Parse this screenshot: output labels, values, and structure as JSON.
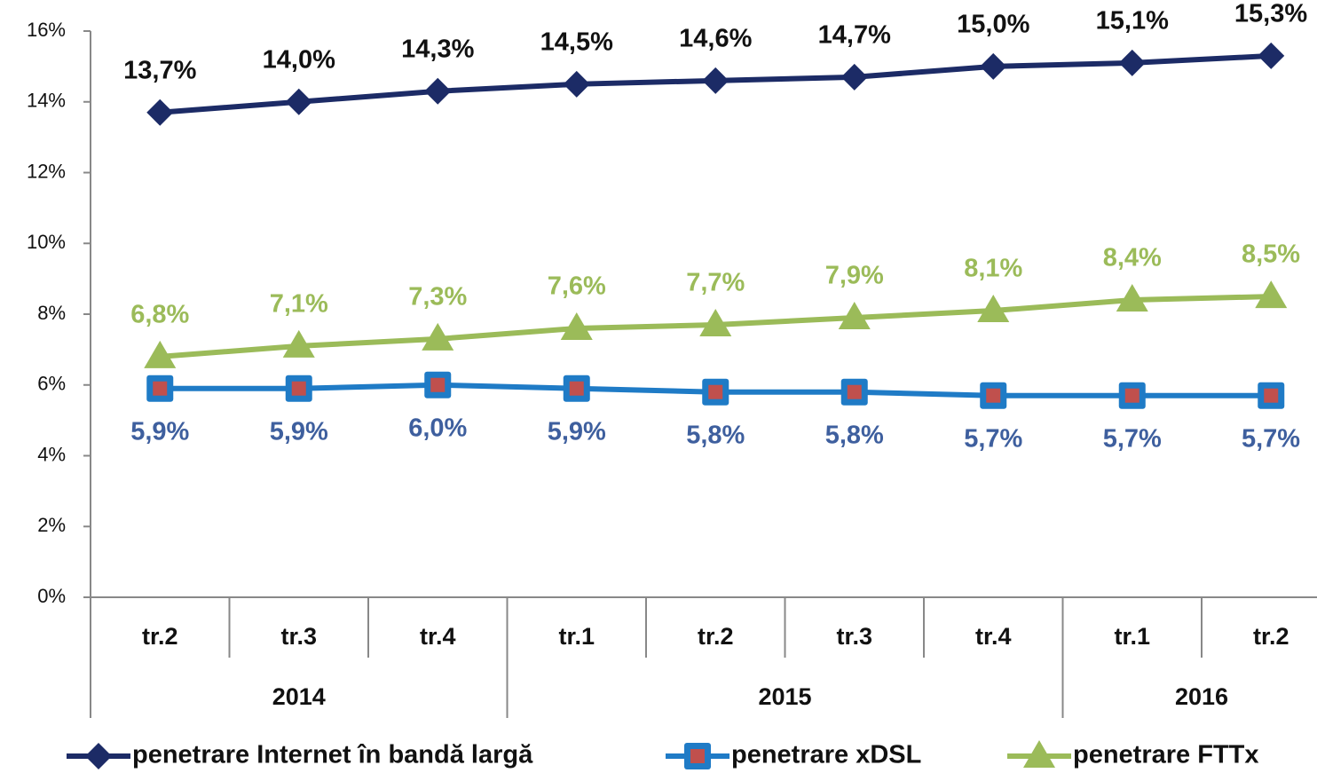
{
  "chart_data": {
    "type": "line",
    "categories": [
      "tr.2",
      "tr.3",
      "tr.4",
      "tr.1",
      "tr.2",
      "tr.3",
      "tr.4",
      "tr.1",
      "tr.2"
    ],
    "category_groups": [
      {
        "label": "2014",
        "count": 3
      },
      {
        "label": "2015",
        "count": 4
      },
      {
        "label": "2016",
        "count": 2
      }
    ],
    "ylim": [
      0,
      16
    ],
    "yticks": [
      {
        "value": 0,
        "label": "0%"
      },
      {
        "value": 2,
        "label": "2%"
      },
      {
        "value": 4,
        "label": "4%"
      },
      {
        "value": 6,
        "label": "6%"
      },
      {
        "value": 8,
        "label": "8%"
      },
      {
        "value": 10,
        "label": "10%"
      },
      {
        "value": 12,
        "label": "12%"
      },
      {
        "value": 14,
        "label": "14%"
      },
      {
        "value": 16,
        "label": "16%"
      }
    ],
    "legend": "bottom",
    "series": [
      {
        "name": "penetrare Internet în bandă largă",
        "color": "#1c2b66",
        "marker": "diamond",
        "label_color": "#111111",
        "label_position": "above",
        "values": [
          13.7,
          14.0,
          14.3,
          14.5,
          14.6,
          14.7,
          15.0,
          15.1,
          15.3
        ],
        "value_labels": [
          "13,7%",
          "14,0%",
          "14,3%",
          "14,5%",
          "14,6%",
          "14,7%",
          "15,0%",
          "15,1%",
          "15,3%"
        ]
      },
      {
        "name": "penetrare xDSL",
        "color": "#1f7bc6",
        "marker": "square",
        "label_color": "#3e5f9e",
        "label_position": "below",
        "values": [
          5.9,
          5.9,
          6.0,
          5.9,
          5.8,
          5.8,
          5.7,
          5.7,
          5.7
        ],
        "value_labels": [
          "5,9%",
          "5,9%",
          "6,0%",
          "5,9%",
          "5,8%",
          "5,8%",
          "5,7%",
          "5,7%",
          "5,7%"
        ]
      },
      {
        "name": "penetrare FTTx",
        "color": "#9bbb59",
        "marker": "triangle",
        "label_color": "#9bbb59",
        "label_position": "above",
        "values": [
          6.8,
          7.1,
          7.3,
          7.6,
          7.7,
          7.9,
          8.1,
          8.4,
          8.5
        ],
        "value_labels": [
          "6,8%",
          "7,1%",
          "7,3%",
          "7,6%",
          "7,7%",
          "7,9%",
          "8,1%",
          "8,4%",
          "8,5%"
        ]
      }
    ]
  }
}
